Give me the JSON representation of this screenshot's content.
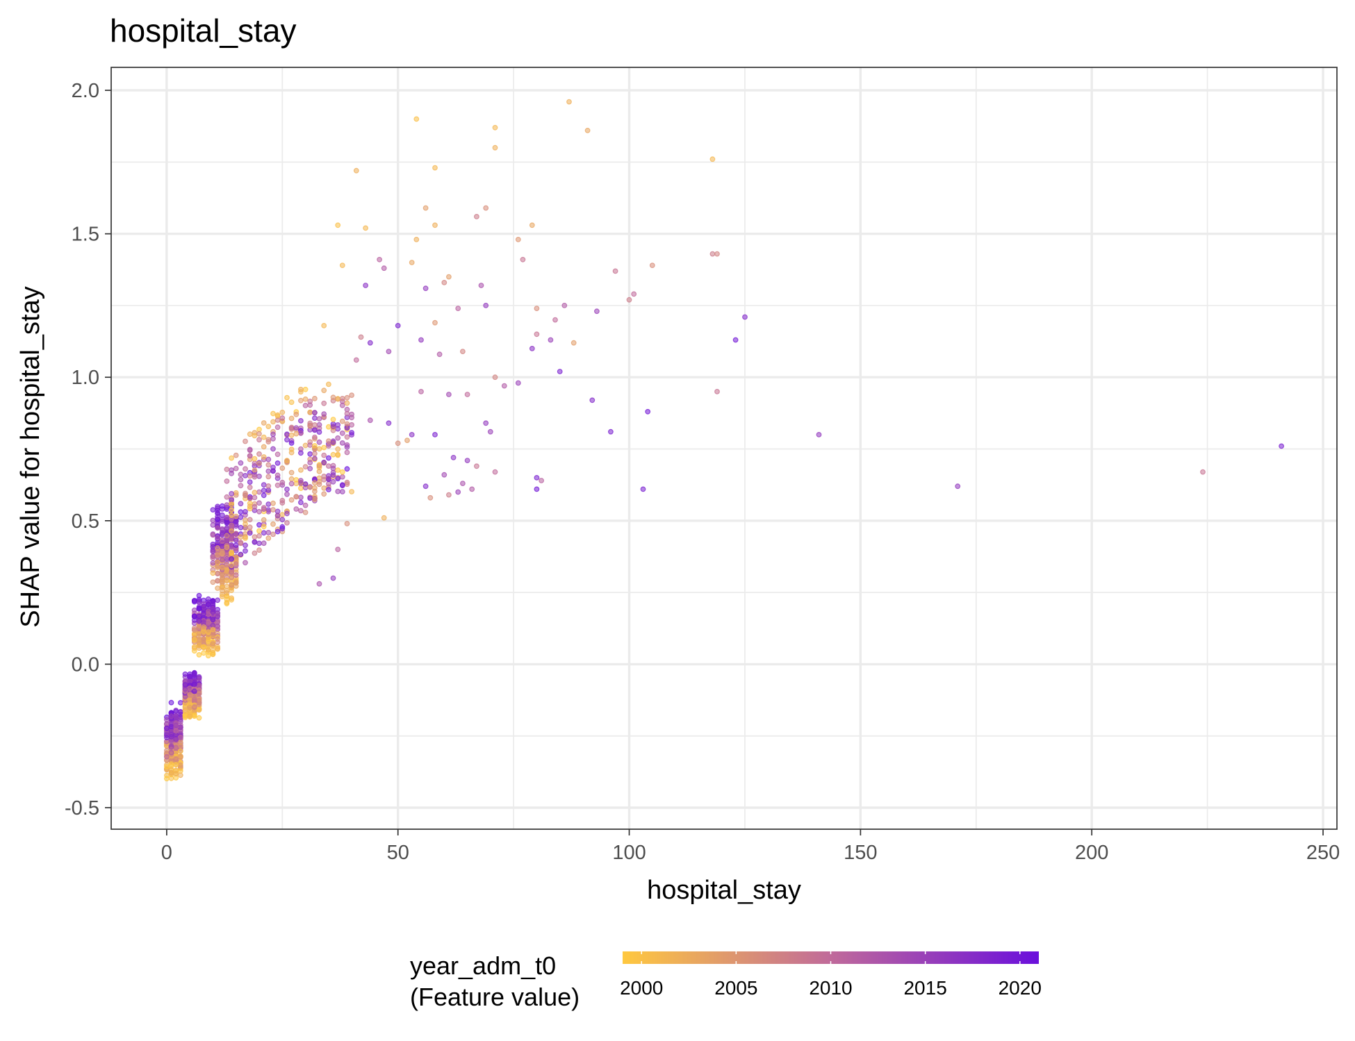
{
  "chart_data": {
    "type": "scatter",
    "title": "hospital_stay",
    "xlabel": "hospital_stay",
    "ylabel": "SHAP value for hospital_stay",
    "xlim": [
      -12,
      253
    ],
    "ylim": [
      -0.575,
      2.08
    ],
    "x_ticks": [
      0,
      50,
      100,
      150,
      200,
      250
    ],
    "x_tick_labels": [
      "0",
      "50",
      "100",
      "150",
      "200",
      "250"
    ],
    "y_ticks": [
      -0.5,
      0.0,
      0.5,
      1.0,
      1.5,
      2.0
    ],
    "y_tick_labels": [
      "-0.5",
      "0.0",
      "0.5",
      "1.0",
      "1.5",
      "2.0"
    ],
    "grid": true,
    "legend": {
      "title_line1": "year_adm_t0",
      "title_line2": "(Feature value)",
      "placement": "bottom",
      "range": [
        1999,
        2021
      ],
      "ticks": [
        2000,
        2005,
        2010,
        2015,
        2020
      ],
      "tick_labels": [
        "2000",
        "2005",
        "2010",
        "2015",
        "2020"
      ],
      "color_low": "#ffc83f",
      "color_mid": "#c06a9a",
      "color_high": "#6a0fdc"
    },
    "cluster_summary": [
      {
        "x_range": [
          0,
          3
        ],
        "y_range": [
          -0.46,
          -0.13
        ]
      },
      {
        "x_range": [
          4,
          7
        ],
        "y_range": [
          -0.22,
          -0.02
        ]
      },
      {
        "x_range": [
          6,
          11
        ],
        "y_range": [
          -0.01,
          0.24
        ]
      },
      {
        "x_range": [
          10,
          15
        ],
        "y_range": [
          0.13,
          0.57
        ]
      },
      {
        "x_range": [
          13,
          40
        ],
        "y_range": [
          0.27,
          1.0
        ]
      }
    ],
    "points": [
      [
        87,
        1.96,
        2002
      ],
      [
        54,
        1.9,
        2000
      ],
      [
        91,
        1.86,
        2003
      ],
      [
        71,
        1.87,
        2001
      ],
      [
        71,
        1.8,
        2002
      ],
      [
        118,
        1.76,
        2001
      ],
      [
        58,
        1.73,
        2001
      ],
      [
        41,
        1.72,
        2002
      ],
      [
        56,
        1.59,
        2004
      ],
      [
        69,
        1.59,
        2006
      ],
      [
        67,
        1.56,
        2008
      ],
      [
        58,
        1.53,
        2002
      ],
      [
        79,
        1.53,
        2003
      ],
      [
        37,
        1.53,
        2000
      ],
      [
        43,
        1.52,
        2001
      ],
      [
        54,
        1.48,
        2002
      ],
      [
        76,
        1.48,
        2005
      ],
      [
        118,
        1.43,
        2008
      ],
      [
        119,
        1.43,
        2007
      ],
      [
        77,
        1.41,
        2009
      ],
      [
        46,
        1.41,
        2011
      ],
      [
        53,
        1.4,
        2003
      ],
      [
        47,
        1.38,
        2012
      ],
      [
        105,
        1.39,
        2006
      ],
      [
        97,
        1.37,
        2009
      ],
      [
        61,
        1.35,
        2004
      ],
      [
        38,
        1.39,
        2001
      ],
      [
        68,
        1.32,
        2013
      ],
      [
        43,
        1.32,
        2017
      ],
      [
        56,
        1.31,
        2016
      ],
      [
        60,
        1.33,
        2007
      ],
      [
        101,
        1.29,
        2010
      ],
      [
        100,
        1.27,
        2008
      ],
      [
        86,
        1.25,
        2012
      ],
      [
        69,
        1.25,
        2016
      ],
      [
        63,
        1.24,
        2011
      ],
      [
        80,
        1.24,
        2006
      ],
      [
        93,
        1.23,
        2015
      ],
      [
        125,
        1.21,
        2018
      ],
      [
        84,
        1.2,
        2010
      ],
      [
        58,
        1.19,
        2005
      ],
      [
        50,
        1.18,
        2019
      ],
      [
        34,
        1.18,
        2001
      ],
      [
        42,
        1.14,
        2008
      ],
      [
        80,
        1.15,
        2009
      ],
      [
        123,
        1.13,
        2020
      ],
      [
        83,
        1.13,
        2015
      ],
      [
        88,
        1.12,
        2004
      ],
      [
        44,
        1.12,
        2018
      ],
      [
        55,
        1.13,
        2016
      ],
      [
        79,
        1.1,
        2017
      ],
      [
        64,
        1.09,
        2007
      ],
      [
        59,
        1.08,
        2012
      ],
      [
        48,
        1.09,
        2014
      ],
      [
        41,
        1.06,
        2010
      ],
      [
        85,
        1.02,
        2019
      ],
      [
        71,
        1.0,
        2007
      ],
      [
        76,
        0.98,
        2015
      ],
      [
        73,
        0.97,
        2012
      ],
      [
        119,
        0.95,
        2009
      ],
      [
        65,
        0.94,
        2010
      ],
      [
        61,
        0.94,
        2014
      ],
      [
        92,
        0.92,
        2018
      ],
      [
        55,
        0.95,
        2011
      ],
      [
        36,
        0.93,
        2005
      ],
      [
        104,
        0.88,
        2020
      ],
      [
        69,
        0.84,
        2016
      ],
      [
        44,
        0.85,
        2013
      ],
      [
        48,
        0.84,
        2018
      ],
      [
        96,
        0.81,
        2019
      ],
      [
        141,
        0.8,
        2016
      ],
      [
        70,
        0.81,
        2015
      ],
      [
        58,
        0.8,
        2019
      ],
      [
        53,
        0.8,
        2017
      ],
      [
        50,
        0.77,
        2006
      ],
      [
        241,
        0.76,
        2019
      ],
      [
        52,
        0.78,
        2004
      ],
      [
        62,
        0.72,
        2017
      ],
      [
        65,
        0.71,
        2016
      ],
      [
        67,
        0.69,
        2009
      ],
      [
        224,
        0.67,
        2009
      ],
      [
        71,
        0.67,
        2010
      ],
      [
        60,
        0.66,
        2014
      ],
      [
        80,
        0.65,
        2019
      ],
      [
        81,
        0.64,
        2011
      ],
      [
        64,
        0.63,
        2013
      ],
      [
        56,
        0.62,
        2018
      ],
      [
        171,
        0.62,
        2016
      ],
      [
        103,
        0.61,
        2019
      ],
      [
        80,
        0.61,
        2020
      ],
      [
        66,
        0.61,
        2012
      ],
      [
        63,
        0.6,
        2015
      ],
      [
        61,
        0.59,
        2008
      ],
      [
        57,
        0.58,
        2006
      ],
      [
        47,
        0.51,
        2002
      ],
      [
        39,
        0.49,
        2006
      ],
      [
        36,
        0.3,
        2016
      ],
      [
        33,
        0.28,
        2013
      ],
      [
        37,
        0.4,
        2011
      ]
    ]
  }
}
